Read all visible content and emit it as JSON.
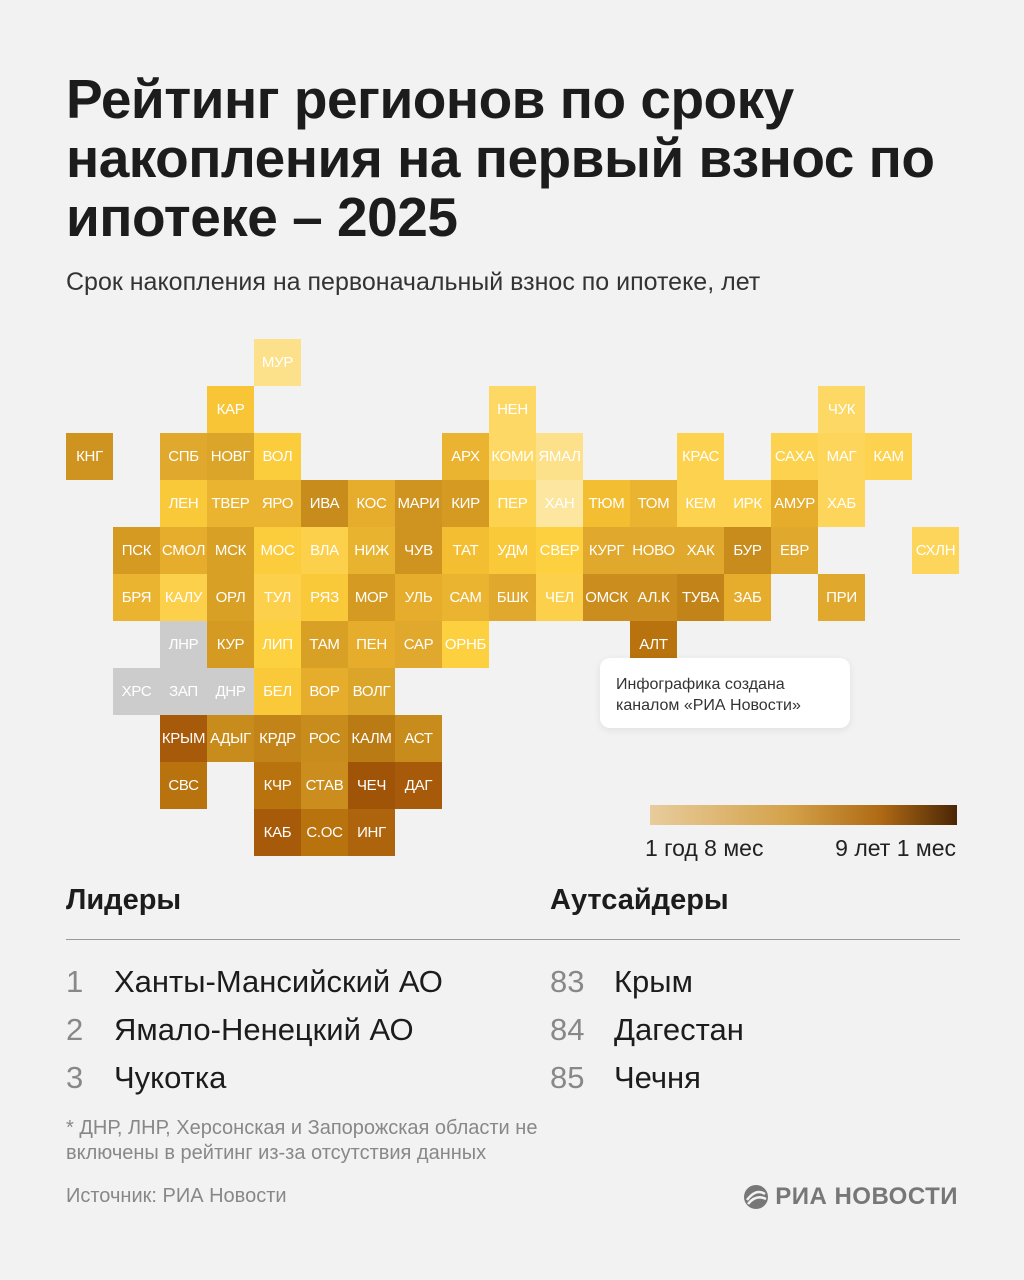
{
  "header": {
    "title": "Рейтинг регионов по сроку накопления на первый взнос по ипотеке – 2025",
    "subtitle": "Срок накопления на первоначальный взнос по ипотеке, лет"
  },
  "chart_data": {
    "type": "heatmap",
    "subtype": "tile-map",
    "title": "Срок накопления на первоначальный взнос по ипотеке, лет",
    "no_data_color": "#cccccc",
    "scale": {
      "min_label": "1 год 8 мес",
      "max_label": "9 лет 1 мес",
      "min_color": "#e8cc9c",
      "max_color": "#4a2606"
    },
    "tiles": [
      {
        "label": "МУР",
        "color": "#fde08a"
      },
      {
        "label": "КАР",
        "color": "#f7c535"
      },
      {
        "label": "НЕН",
        "color": "#fdd865"
      },
      {
        "label": "ЧУК",
        "color": "#fdd865"
      },
      {
        "label": "КНГ",
        "color": "#cf9420"
      },
      {
        "label": "СПБ",
        "color": "#e0a82c"
      },
      {
        "label": "НОВГ",
        "color": "#dba52a"
      },
      {
        "label": "ВОЛ",
        "color": "#fbcc3c"
      },
      {
        "label": "АРХ",
        "color": "#eab430"
      },
      {
        "label": "КОМИ",
        "color": "#fdd865"
      },
      {
        "label": "ЯМАЛ",
        "color": "#fde08a"
      },
      {
        "label": "КРАС",
        "color": "#fcd24e"
      },
      {
        "label": "САХА",
        "color": "#fcd24e"
      },
      {
        "label": "МАГ",
        "color": "#fdd55a"
      },
      {
        "label": "КАМ",
        "color": "#fcd24e"
      },
      {
        "label": "ЛЕН",
        "color": "#f9c93a"
      },
      {
        "label": "ТВЕР",
        "color": "#eab430"
      },
      {
        "label": "ЯРО",
        "color": "#eab430"
      },
      {
        "label": "ИВА",
        "color": "#c88c1c"
      },
      {
        "label": "КОС",
        "color": "#e6ac2c"
      },
      {
        "label": "МАРИ",
        "color": "#cf9420"
      },
      {
        "label": "КИР",
        "color": "#d49a22"
      },
      {
        "label": "ПЕР",
        "color": "#fcd24e"
      },
      {
        "label": "ХАН",
        "color": "#fde6a0"
      },
      {
        "label": "ТЮМ",
        "color": "#f3be32"
      },
      {
        "label": "ТОМ",
        "color": "#ebb430"
      },
      {
        "label": "КЕМ",
        "color": "#fcd24e"
      },
      {
        "label": "ИРК",
        "color": "#fcd24e"
      },
      {
        "label": "АМУР",
        "color": "#e6ac2c"
      },
      {
        "label": "ХАБ",
        "color": "#fdd55a"
      },
      {
        "label": "ПСК",
        "color": "#d49a22"
      },
      {
        "label": "СМОЛ",
        "color": "#e6ac2c"
      },
      {
        "label": "МСК",
        "color": "#d8a024"
      },
      {
        "label": "МОС",
        "color": "#fbcc3c"
      },
      {
        "label": "ВЛА",
        "color": "#fcd04a"
      },
      {
        "label": "НИЖ",
        "color": "#e8b430"
      },
      {
        "label": "ЧУВ",
        "color": "#cf9420"
      },
      {
        "label": "ТАТ",
        "color": "#f3be32"
      },
      {
        "label": "УДМ",
        "color": "#f9c93a"
      },
      {
        "label": "СВЕР",
        "color": "#fdd040"
      },
      {
        "label": "КУРГ",
        "color": "#e0a82c"
      },
      {
        "label": "НОВО",
        "color": "#e0a82c"
      },
      {
        "label": "ХАК",
        "color": "#e0a82c"
      },
      {
        "label": "БУР",
        "color": "#c88c1c"
      },
      {
        "label": "ЕВР",
        "color": "#e0a82c"
      },
      {
        "label": "СХЛН",
        "color": "#fdd55a"
      },
      {
        "label": "БРЯ",
        "color": "#eab430"
      },
      {
        "label": "КАЛУ",
        "color": "#fcd04a"
      },
      {
        "label": "ОРЛ",
        "color": "#d8a024"
      },
      {
        "label": "ТУЛ",
        "color": "#fcd04a"
      },
      {
        "label": "РЯЗ",
        "color": "#f9c93a"
      },
      {
        "label": "МОР",
        "color": "#d49a22"
      },
      {
        "label": "УЛЬ",
        "color": "#e6ac2c"
      },
      {
        "label": "САМ",
        "color": "#eab430"
      },
      {
        "label": "БШК",
        "color": "#e0a82c"
      },
      {
        "label": "ЧЕЛ",
        "color": "#fcd04a"
      },
      {
        "label": "ОМСК",
        "color": "#cb8e1e"
      },
      {
        "label": "АЛ.К",
        "color": "#cb8e1e"
      },
      {
        "label": "ТУВА",
        "color": "#c28418"
      },
      {
        "label": "ЗАБ",
        "color": "#e6ac2c"
      },
      {
        "label": "ПРИ",
        "color": "#e0a82c"
      },
      {
        "label": "ЛНР",
        "color": "#cccccc"
      },
      {
        "label": "КУР",
        "color": "#d49a22"
      },
      {
        "label": "ЛИП",
        "color": "#fdd040"
      },
      {
        "label": "ТАМ",
        "color": "#d8a024"
      },
      {
        "label": "ПЕН",
        "color": "#e6ac2c"
      },
      {
        "label": "САР",
        "color": "#e0a82c"
      },
      {
        "label": "ОРНБ",
        "color": "#fdd040"
      },
      {
        "label": "АЛТ",
        "color": "#b8730e"
      },
      {
        "label": "ХРС",
        "color": "#cccccc"
      },
      {
        "label": "ЗАП",
        "color": "#cccccc"
      },
      {
        "label": "ДНР",
        "color": "#cccccc"
      },
      {
        "label": "БЕЛ",
        "color": "#f9c93a"
      },
      {
        "label": "ВОР",
        "color": "#e6ac2c"
      },
      {
        "label": "ВОЛГ",
        "color": "#dba52a"
      },
      {
        "label": "КРЫМ",
        "color": "#a65a0a"
      },
      {
        "label": "АДЫГ",
        "color": "#c88c1c"
      },
      {
        "label": "КРДР",
        "color": "#c28418"
      },
      {
        "label": "РОС",
        "color": "#c88c1c"
      },
      {
        "label": "КАЛМ",
        "color": "#ba7a14"
      },
      {
        "label": "АСТ",
        "color": "#c88c1c"
      },
      {
        "label": "СВС",
        "color": "#b8730e"
      },
      {
        "label": "КЧР",
        "color": "#b8730e"
      },
      {
        "label": "СТАВ",
        "color": "#cb8e1e"
      },
      {
        "label": "ЧЕЧ",
        "color": "#a05408"
      },
      {
        "label": "ДАГ",
        "color": "#a65a0a"
      },
      {
        "label": "КАБ",
        "color": "#a65a0a"
      },
      {
        "label": "С.ОС",
        "color": "#b8730e"
      },
      {
        "label": "ИНГ",
        "color": "#ad640c"
      }
    ]
  },
  "note": "Инфографика создана каналом «РИА Новости»",
  "leaders": {
    "heading": "Лидеры",
    "items": [
      {
        "rank": "1",
        "name": "Ханты-Мансийский АО"
      },
      {
        "rank": "2",
        "name": "Ямало-Ненецкий АО"
      },
      {
        "rank": "3",
        "name": "Чукотка"
      }
    ]
  },
  "outsiders": {
    "heading": "Аутсайдеры",
    "items": [
      {
        "rank": "83",
        "name": "Крым"
      },
      {
        "rank": "84",
        "name": "Дагестан"
      },
      {
        "rank": "85",
        "name": "Чечня"
      }
    ]
  },
  "footnote": "* ДНР, ЛНР, Херсонская и Запорожская области не включены в рейтинг из-за отсутствия данных",
  "source": "Источник: РИА Новости",
  "logo": "РИА НОВОСТИ"
}
